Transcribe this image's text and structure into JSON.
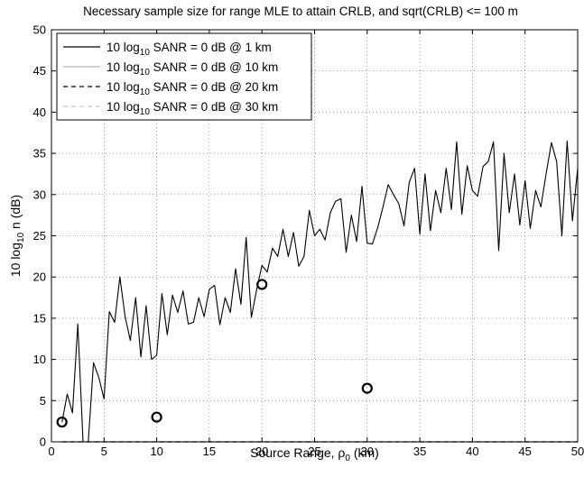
{
  "chart_data": {
    "type": "line",
    "title": "Necessary sample size for range MLE to attain CRLB, and sqrt(CRLB) <= 100 m",
    "xlabel": "Source Range, ρ0 (km)",
    "xlabel_parts": {
      "pre": "Source Range, ρ",
      "sub": "0",
      "post": " (km)"
    },
    "ylabel": "10 log10 n (dB)",
    "ylabel_parts": {
      "pre": "10 log",
      "sub": "10",
      "post": " n (dB)"
    },
    "xlim": [
      0,
      50
    ],
    "ylim": [
      0,
      50
    ],
    "xticks": [
      0,
      5,
      10,
      15,
      20,
      25,
      30,
      35,
      40,
      45,
      50
    ],
    "yticks": [
      0,
      5,
      10,
      15,
      20,
      25,
      30,
      35,
      40,
      45,
      50
    ],
    "grid": true,
    "legend_position": "top-left",
    "legend": [
      {
        "pre": "10 log",
        "sub": "10",
        "post": " SANR = 0 dB @ 1 km"
      },
      {
        "pre": "10 log",
        "sub": "10",
        "post": " SANR = 0 dB @ 10 km"
      },
      {
        "pre": "10 log",
        "sub": "10",
        "post": " SANR = 0 dB @ 20 km"
      },
      {
        "pre": "10 log",
        "sub": "10",
        "post": " SANR = 0 dB @ 30 km"
      }
    ],
    "x": [
      1,
      1.5,
      2,
      2.5,
      3,
      3.5,
      4,
      4.5,
      5,
      5.5,
      6,
      6.5,
      7,
      7.5,
      8,
      8.5,
      9,
      9.5,
      10,
      10.5,
      11,
      11.5,
      12,
      12.5,
      13,
      13.5,
      14,
      14.5,
      15,
      15.5,
      16,
      16.5,
      17,
      17.5,
      18,
      18.5,
      19,
      19.5,
      20,
      20.5,
      21,
      21.5,
      22,
      22.5,
      23,
      23.5,
      24,
      24.5,
      25,
      25.5,
      26,
      26.5,
      27,
      27.5,
      28,
      28.5,
      29,
      29.5,
      30,
      30.5,
      31,
      31.5,
      32,
      32.5,
      33,
      33.5,
      34,
      34.5,
      35,
      35.5,
      36,
      36.5,
      37,
      37.5,
      38,
      38.5,
      39,
      39.5,
      40,
      40.5,
      41,
      41.5,
      42,
      42.5,
      43,
      43.5,
      44,
      44.5,
      45,
      45.5,
      46,
      46.5,
      47,
      47.5,
      48,
      48.5,
      49,
      49.5,
      50
    ],
    "series": [
      {
        "name": "10 log10 SANR = 0 dB @ 1 km",
        "color": "#000000",
        "dash": "solid",
        "values": [
          2.4,
          5.8,
          3.5,
          14.3,
          0,
          0,
          9.6,
          7.8,
          5.2,
          15.8,
          14.5,
          20,
          15.2,
          12.3,
          17.5,
          10.3,
          16.5,
          10,
          10.5,
          18,
          13,
          17.8,
          15.7,
          18.3,
          14.3,
          14.5,
          17.5,
          15.2,
          18.5,
          19,
          14.2,
          17.5,
          15.7,
          21,
          16.7,
          24.8,
          15.1,
          18.5,
          21.4,
          20.6,
          23.5,
          22.5,
          25.8,
          22.5,
          25.4,
          21.3,
          22.5,
          28.1,
          25,
          25.8,
          24.5,
          27.8,
          29.2,
          29.5,
          23,
          27.5,
          24.3,
          31,
          24.1,
          24,
          26,
          28.5,
          31.2,
          30,
          28.9,
          26.2,
          31.5,
          33.2,
          25.2,
          32.5,
          25.6,
          30.5,
          27.8,
          33.2,
          28.2,
          36.4,
          27.6,
          33.5,
          30.5,
          29.8,
          33.4,
          34,
          36.4,
          23.2,
          35,
          27.8,
          32.5,
          26.3,
          31.7,
          25.9,
          30.5,
          28.5,
          32.5,
          36.3,
          34,
          25,
          36.5,
          26.8,
          33.2
        ]
      },
      {
        "name": "10 log10 SANR = 0 dB @ 10 km",
        "color": "#b4b4b4",
        "dash": "solid",
        "values": [
          0,
          0,
          0,
          0,
          0,
          0,
          0,
          0,
          0,
          0,
          0,
          0,
          0,
          0,
          0,
          0,
          0,
          0,
          0,
          0,
          0,
          0,
          0,
          0,
          0,
          0,
          0,
          0,
          0,
          0,
          0,
          0,
          0,
          0,
          0,
          0,
          0,
          0,
          0,
          0,
          0,
          0,
          0,
          0,
          0,
          0,
          0,
          0,
          0,
          0,
          0,
          0,
          0,
          0,
          0,
          0,
          0,
          0,
          0,
          0,
          0,
          0,
          0,
          0,
          0,
          0,
          0,
          0,
          0,
          0,
          0,
          0,
          0,
          0,
          0,
          0,
          0,
          0,
          0,
          0,
          0,
          0,
          0,
          0,
          0,
          0,
          0,
          0,
          0,
          0,
          0,
          0,
          0,
          0,
          0,
          0,
          0,
          0,
          0
        ]
      },
      {
        "name": "10 log10 SANR = 0 dB @ 20 km",
        "color": "#000000",
        "dash": "dashed",
        "values": [
          0,
          0,
          0,
          0,
          0,
          0,
          0,
          0,
          0,
          0,
          0,
          0,
          0,
          0,
          0,
          0,
          0,
          0,
          0,
          0,
          0,
          0,
          0,
          0,
          0,
          0,
          0,
          0,
          0,
          0,
          0,
          0,
          0,
          0,
          0,
          0,
          0,
          0,
          0,
          0,
          0,
          0,
          0,
          0,
          0,
          0,
          0,
          0,
          0,
          0,
          0,
          0,
          0,
          0,
          0,
          0,
          0,
          0,
          0,
          0,
          0,
          0,
          0,
          0,
          0,
          0,
          0,
          0,
          0,
          0,
          0,
          0,
          0,
          0,
          0,
          0,
          0,
          0,
          0,
          0,
          0,
          0,
          0,
          0,
          0,
          0,
          0,
          0,
          0,
          0,
          0,
          0,
          0,
          0,
          0,
          0,
          0,
          0,
          0
        ]
      },
      {
        "name": "10 log10 SANR = 0 dB @ 30 km",
        "color": "#c8c8c8",
        "dash": "dashed",
        "values": [
          0,
          0,
          0,
          0,
          0,
          0,
          0,
          0,
          0,
          0,
          0,
          0,
          0,
          0,
          0,
          0,
          0,
          0,
          0,
          0,
          0,
          0,
          0,
          0,
          0,
          0,
          0,
          0,
          0,
          0,
          0,
          0,
          0,
          0,
          0,
          0,
          0,
          0,
          0,
          0,
          0,
          0,
          0,
          0,
          0,
          0,
          0,
          0,
          0,
          0,
          0,
          0,
          0,
          0,
          0,
          0,
          0,
          0,
          0,
          0,
          0,
          0,
          0,
          0,
          0,
          0,
          0,
          0,
          0,
          0,
          0,
          0,
          0,
          0,
          0,
          0,
          0,
          0,
          0,
          0,
          0,
          0,
          0,
          0,
          0,
          0,
          0,
          0,
          0,
          0,
          0,
          0,
          0,
          0,
          0,
          0,
          0,
          0,
          0
        ]
      }
    ],
    "markers": [
      {
        "x": 1,
        "y": 2.4
      },
      {
        "x": 10,
        "y": 3.0
      },
      {
        "x": 20,
        "y": 19.1
      },
      {
        "x": 30,
        "y": 6.5
      }
    ]
  }
}
